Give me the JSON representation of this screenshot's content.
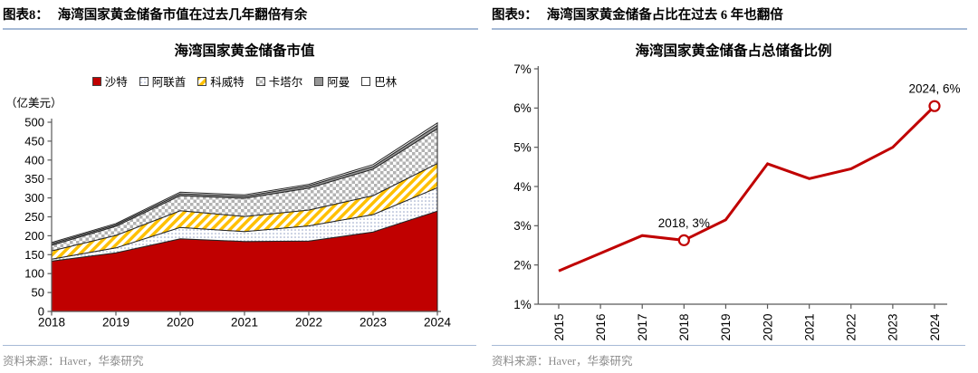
{
  "panels": [
    {
      "figure_label": "图表8：",
      "figure_title": "海湾国家黄金储备市值在过去几年翻倍有余",
      "source_note": "资料来源：Haver，华泰研究"
    },
    {
      "figure_label": "图表9：",
      "figure_title": "海湾国家黄金储备占比在过去 6 年也翻倍",
      "source_note": "资料来源：Haver，华泰研究"
    }
  ],
  "colors": {
    "accent_red": "#C00000",
    "rule_blue": "#A6BAD6",
    "source_gray": "#8C8C8C",
    "axis_gray": "#595959",
    "outline_dark": "#262626"
  },
  "chart_data": [
    {
      "type": "area",
      "stacked": true,
      "title": "海湾国家黄金储备市值",
      "unit_label": "（亿美元）",
      "categories": [
        "2018",
        "2019",
        "2020",
        "2021",
        "2022",
        "2023",
        "2024"
      ],
      "series": [
        {
          "name": "沙特",
          "style": "solid",
          "color": "#C00000",
          "values": [
            133,
            155,
            192,
            185,
            186,
            210,
            265
          ]
        },
        {
          "name": "阿联酋",
          "style": "dots",
          "color": "#93A1C4",
          "values": [
            5,
            13,
            30,
            26,
            40,
            46,
            62
          ]
        },
        {
          "name": "科威特",
          "style": "diagonal-stripes",
          "color": "#FFC000",
          "values": [
            22,
            33,
            44,
            40,
            42,
            50,
            64
          ]
        },
        {
          "name": "卡塔尔",
          "style": "checker",
          "color": "#B2B2B2",
          "values": [
            15,
            24,
            40,
            48,
            58,
            70,
            92
          ]
        },
        {
          "name": "阿曼",
          "style": "solid",
          "color": "#969696",
          "values": [
            4,
            4,
            5,
            5,
            6,
            7,
            9
          ]
        },
        {
          "name": "巴林",
          "style": "solid",
          "color": "#FFFFFF",
          "values": [
            3,
            3,
            4,
            4,
            4,
            5,
            6
          ]
        }
      ],
      "ylim": [
        0,
        500
      ],
      "ytick_step": 50,
      "legend_position": "top",
      "grid": false
    },
    {
      "type": "line",
      "title": "海湾国家黄金储备占总储备比例",
      "x": [
        "2015",
        "2016",
        "2017",
        "2018",
        "2019",
        "2020",
        "2021",
        "2022",
        "2023",
        "2024"
      ],
      "values": [
        1.85,
        2.3,
        2.75,
        2.63,
        3.15,
        4.58,
        4.2,
        4.45,
        5.0,
        6.05
      ],
      "line_color": "#C00000",
      "ylim": [
        1,
        7
      ],
      "ytick_step": 1,
      "ytick_suffix": "%",
      "grid": false,
      "annotations": [
        {
          "x": "2018",
          "label": "2018, 3%"
        },
        {
          "x": "2024",
          "label": "2024, 6%"
        }
      ]
    }
  ]
}
